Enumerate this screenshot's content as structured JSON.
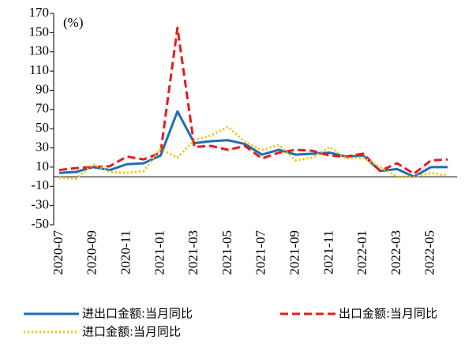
{
  "chart_data": {
    "type": "line",
    "y_label": "(%)",
    "categories": [
      "2020-07",
      null,
      "2020-09",
      null,
      "2020-11",
      null,
      "2021-01",
      null,
      "2021-03",
      null,
      "2021-05",
      null,
      "2021-07",
      null,
      "2021-09",
      null,
      "2021-11",
      null,
      "2022-01",
      null,
      "2022-03",
      null,
      "2022-05",
      null
    ],
    "series": [
      {
        "name": "进出口金额:当月同比",
        "color": "#1f6db3",
        "style": "solid",
        "values": [
          4,
          5,
          10,
          7,
          13,
          14,
          22,
          68,
          35,
          37,
          38,
          34,
          23,
          28,
          23,
          24,
          25,
          21,
          22,
          6,
          8,
          0,
          10,
          10
        ]
      },
      {
        "name": "出口金额:当月同比",
        "color": "#e8191c",
        "style": "dashed",
        "values": [
          7,
          9,
          10,
          11,
          21,
          18,
          25,
          155,
          31,
          32,
          28,
          32,
          19,
          25,
          28,
          27,
          22,
          21,
          24,
          6,
          14,
          3,
          17,
          18
        ]
      },
      {
        "name": "进口金额:当月同比",
        "color": "#f2c200",
        "style": "dotted",
        "values": [
          -1,
          -2,
          13,
          5,
          4,
          6,
          29,
          20,
          38,
          43,
          52,
          36,
          28,
          33,
          17,
          20,
          31,
          19,
          20,
          10,
          0,
          0,
          4,
          1
        ]
      }
    ],
    "ylim": [
      -50,
      170
    ],
    "yticks": [
      -50,
      -30,
      -10,
      10,
      30,
      50,
      70,
      90,
      110,
      130,
      150,
      170
    ],
    "legend": "bottom"
  }
}
